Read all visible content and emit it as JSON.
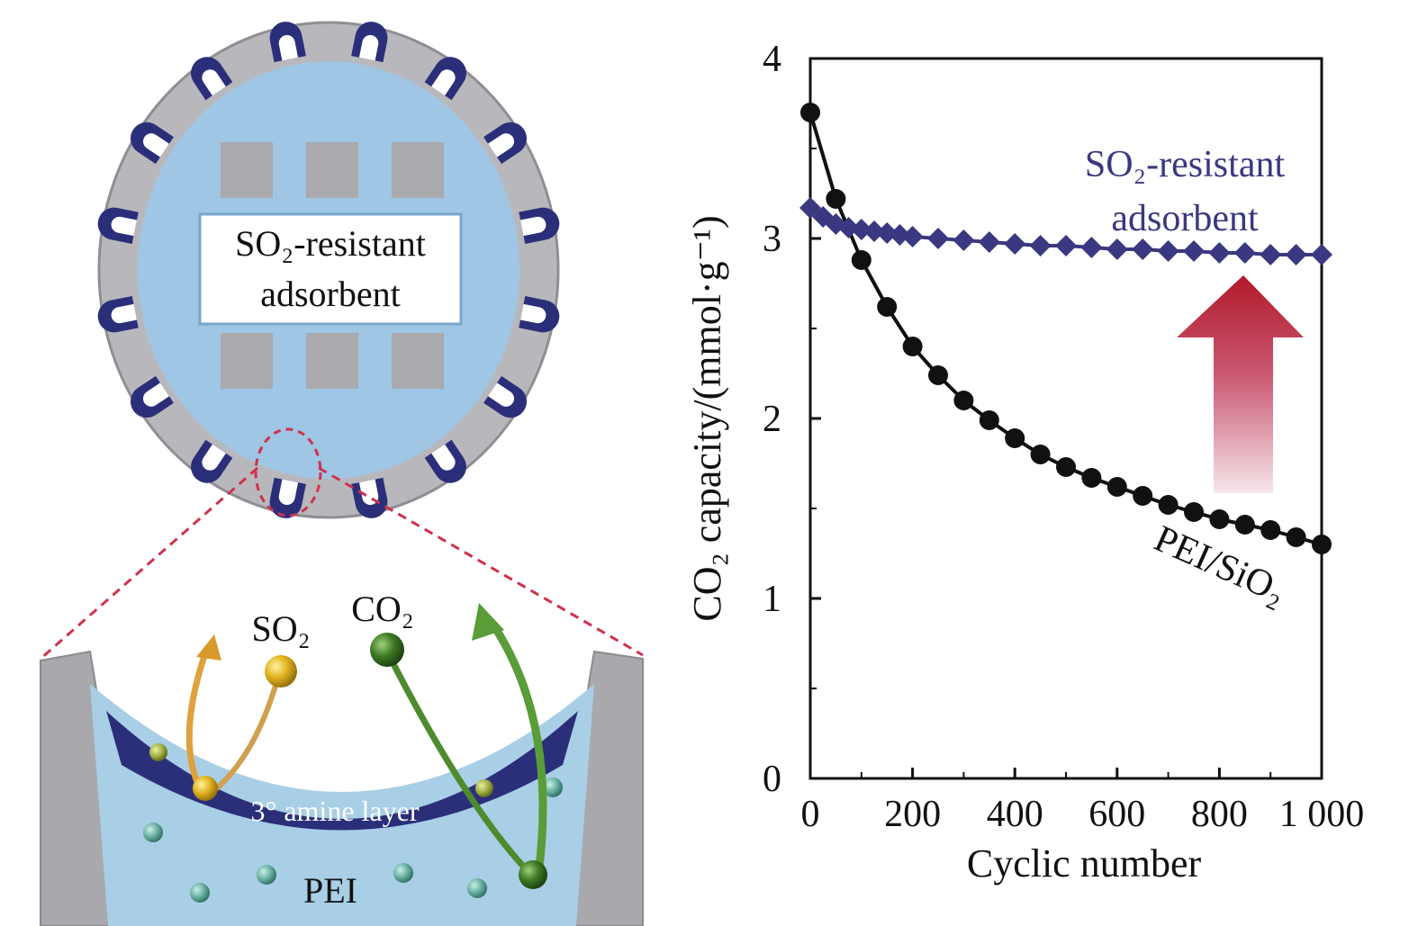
{
  "illustration": {
    "particle_label_1": "SO₂-resistant",
    "particle_label_2": "adsorbent",
    "so2_label": "SO₂",
    "co2_label": "CO₂",
    "amine_layer_label": "3° amine layer",
    "pei_label": "PEI"
  },
  "chart_data": {
    "type": "line",
    "xlabel": "Cyclic number",
    "ylabel": "CO₂ capacity/(mmol·g⁻¹)",
    "xlim": [
      0,
      1000
    ],
    "ylim": [
      0,
      4
    ],
    "x_ticks": [
      0,
      200,
      400,
      600,
      800,
      1000
    ],
    "x_tick_labels": [
      "0",
      "200",
      "400",
      "600",
      "800",
      "1 000"
    ],
    "y_ticks": [
      0,
      1,
      2,
      3,
      4
    ],
    "y_tick_labels": [
      "0",
      "1",
      "2",
      "3",
      "4"
    ],
    "grid": false,
    "series": [
      {
        "name": "PEI/SiO₂",
        "color": "#111111",
        "marker": "circle",
        "x": [
          0,
          50,
          100,
          150,
          200,
          250,
          300,
          350,
          400,
          450,
          500,
          550,
          600,
          650,
          700,
          750,
          800,
          850,
          900,
          950,
          1000
        ],
        "values": [
          3.7,
          3.22,
          2.88,
          2.62,
          2.4,
          2.24,
          2.1,
          1.99,
          1.89,
          1.8,
          1.73,
          1.67,
          1.62,
          1.57,
          1.52,
          1.48,
          1.44,
          1.41,
          1.38,
          1.34,
          1.3
        ]
      },
      {
        "name": "SO₂-resistant adsorbent",
        "color": "#3a3880",
        "marker": "diamond",
        "x": [
          0,
          25,
          50,
          75,
          100,
          125,
          150,
          175,
          200,
          250,
          300,
          350,
          400,
          450,
          500,
          550,
          600,
          650,
          700,
          750,
          800,
          850,
          900,
          950,
          1000
        ],
        "values": [
          3.17,
          3.12,
          3.08,
          3.06,
          3.05,
          3.04,
          3.03,
          3.02,
          3.01,
          3.0,
          2.99,
          2.98,
          2.97,
          2.96,
          2.96,
          2.95,
          2.94,
          2.94,
          2.93,
          2.93,
          2.92,
          2.92,
          2.91,
          2.91,
          2.91
        ]
      }
    ],
    "annotations": {
      "label_1a": "SO₂-resistant",
      "label_1b": "adsorbent",
      "label_2": "PEI/SiO₂"
    }
  }
}
